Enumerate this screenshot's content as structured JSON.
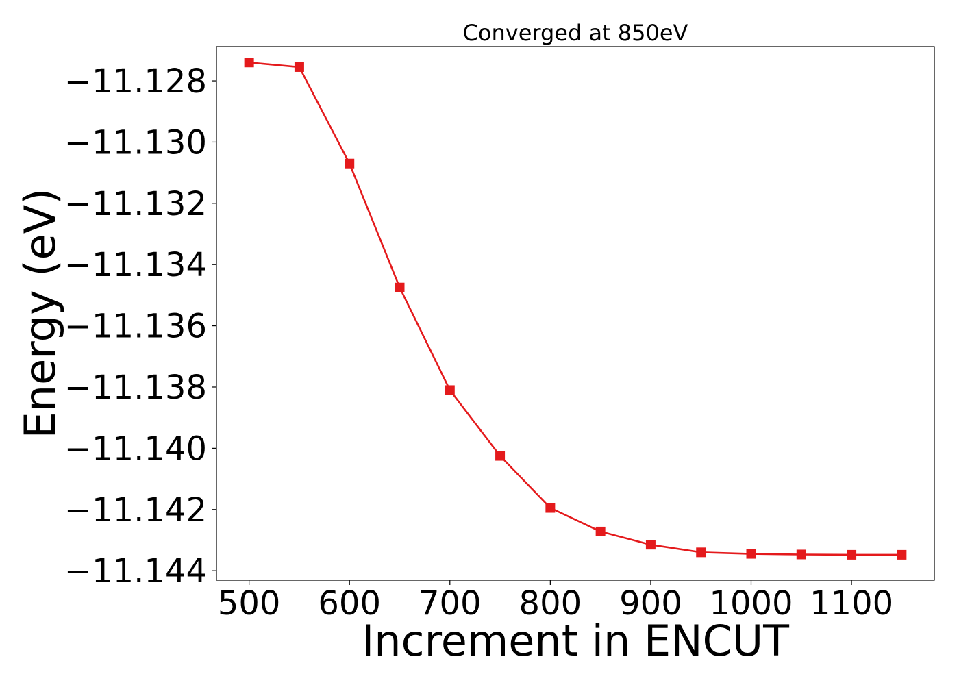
{
  "chart_data": {
    "type": "line",
    "title": "Converged at 850eV",
    "xlabel": "Increment in ENCUT",
    "ylabel": "Energy (eV)",
    "xlim": [
      467.5,
      1182.5
    ],
    "ylim": [
      -11.14431,
      -11.12688
    ],
    "xticks": [
      500,
      600,
      700,
      800,
      900,
      1000,
      1100
    ],
    "xtick_labels": [
      "500",
      "600",
      "700",
      "800",
      "900",
      "1000",
      "1100"
    ],
    "yticks": [
      -11.144,
      -11.142,
      -11.14,
      -11.138,
      -11.136,
      -11.134,
      -11.132,
      -11.13,
      -11.128
    ],
    "ytick_labels": [
      "−11.144",
      "−11.142",
      "−11.140",
      "−11.138",
      "−11.136",
      "−11.134",
      "−11.132",
      "−11.130",
      "−11.128"
    ],
    "grid": false,
    "series": [
      {
        "color": "#e41a1c",
        "marker": "square",
        "x": [
          500,
          550,
          600,
          650,
          700,
          750,
          800,
          850,
          900,
          950,
          1000,
          1050,
          1100,
          1150
        ],
        "y": [
          -11.1274,
          -11.12755,
          -11.1307,
          -11.13475,
          -11.1381,
          -11.14025,
          -11.14195,
          -11.14272,
          -11.14315,
          -11.1434,
          -11.14345,
          -11.14347,
          -11.14348,
          -11.14348
        ]
      }
    ]
  }
}
